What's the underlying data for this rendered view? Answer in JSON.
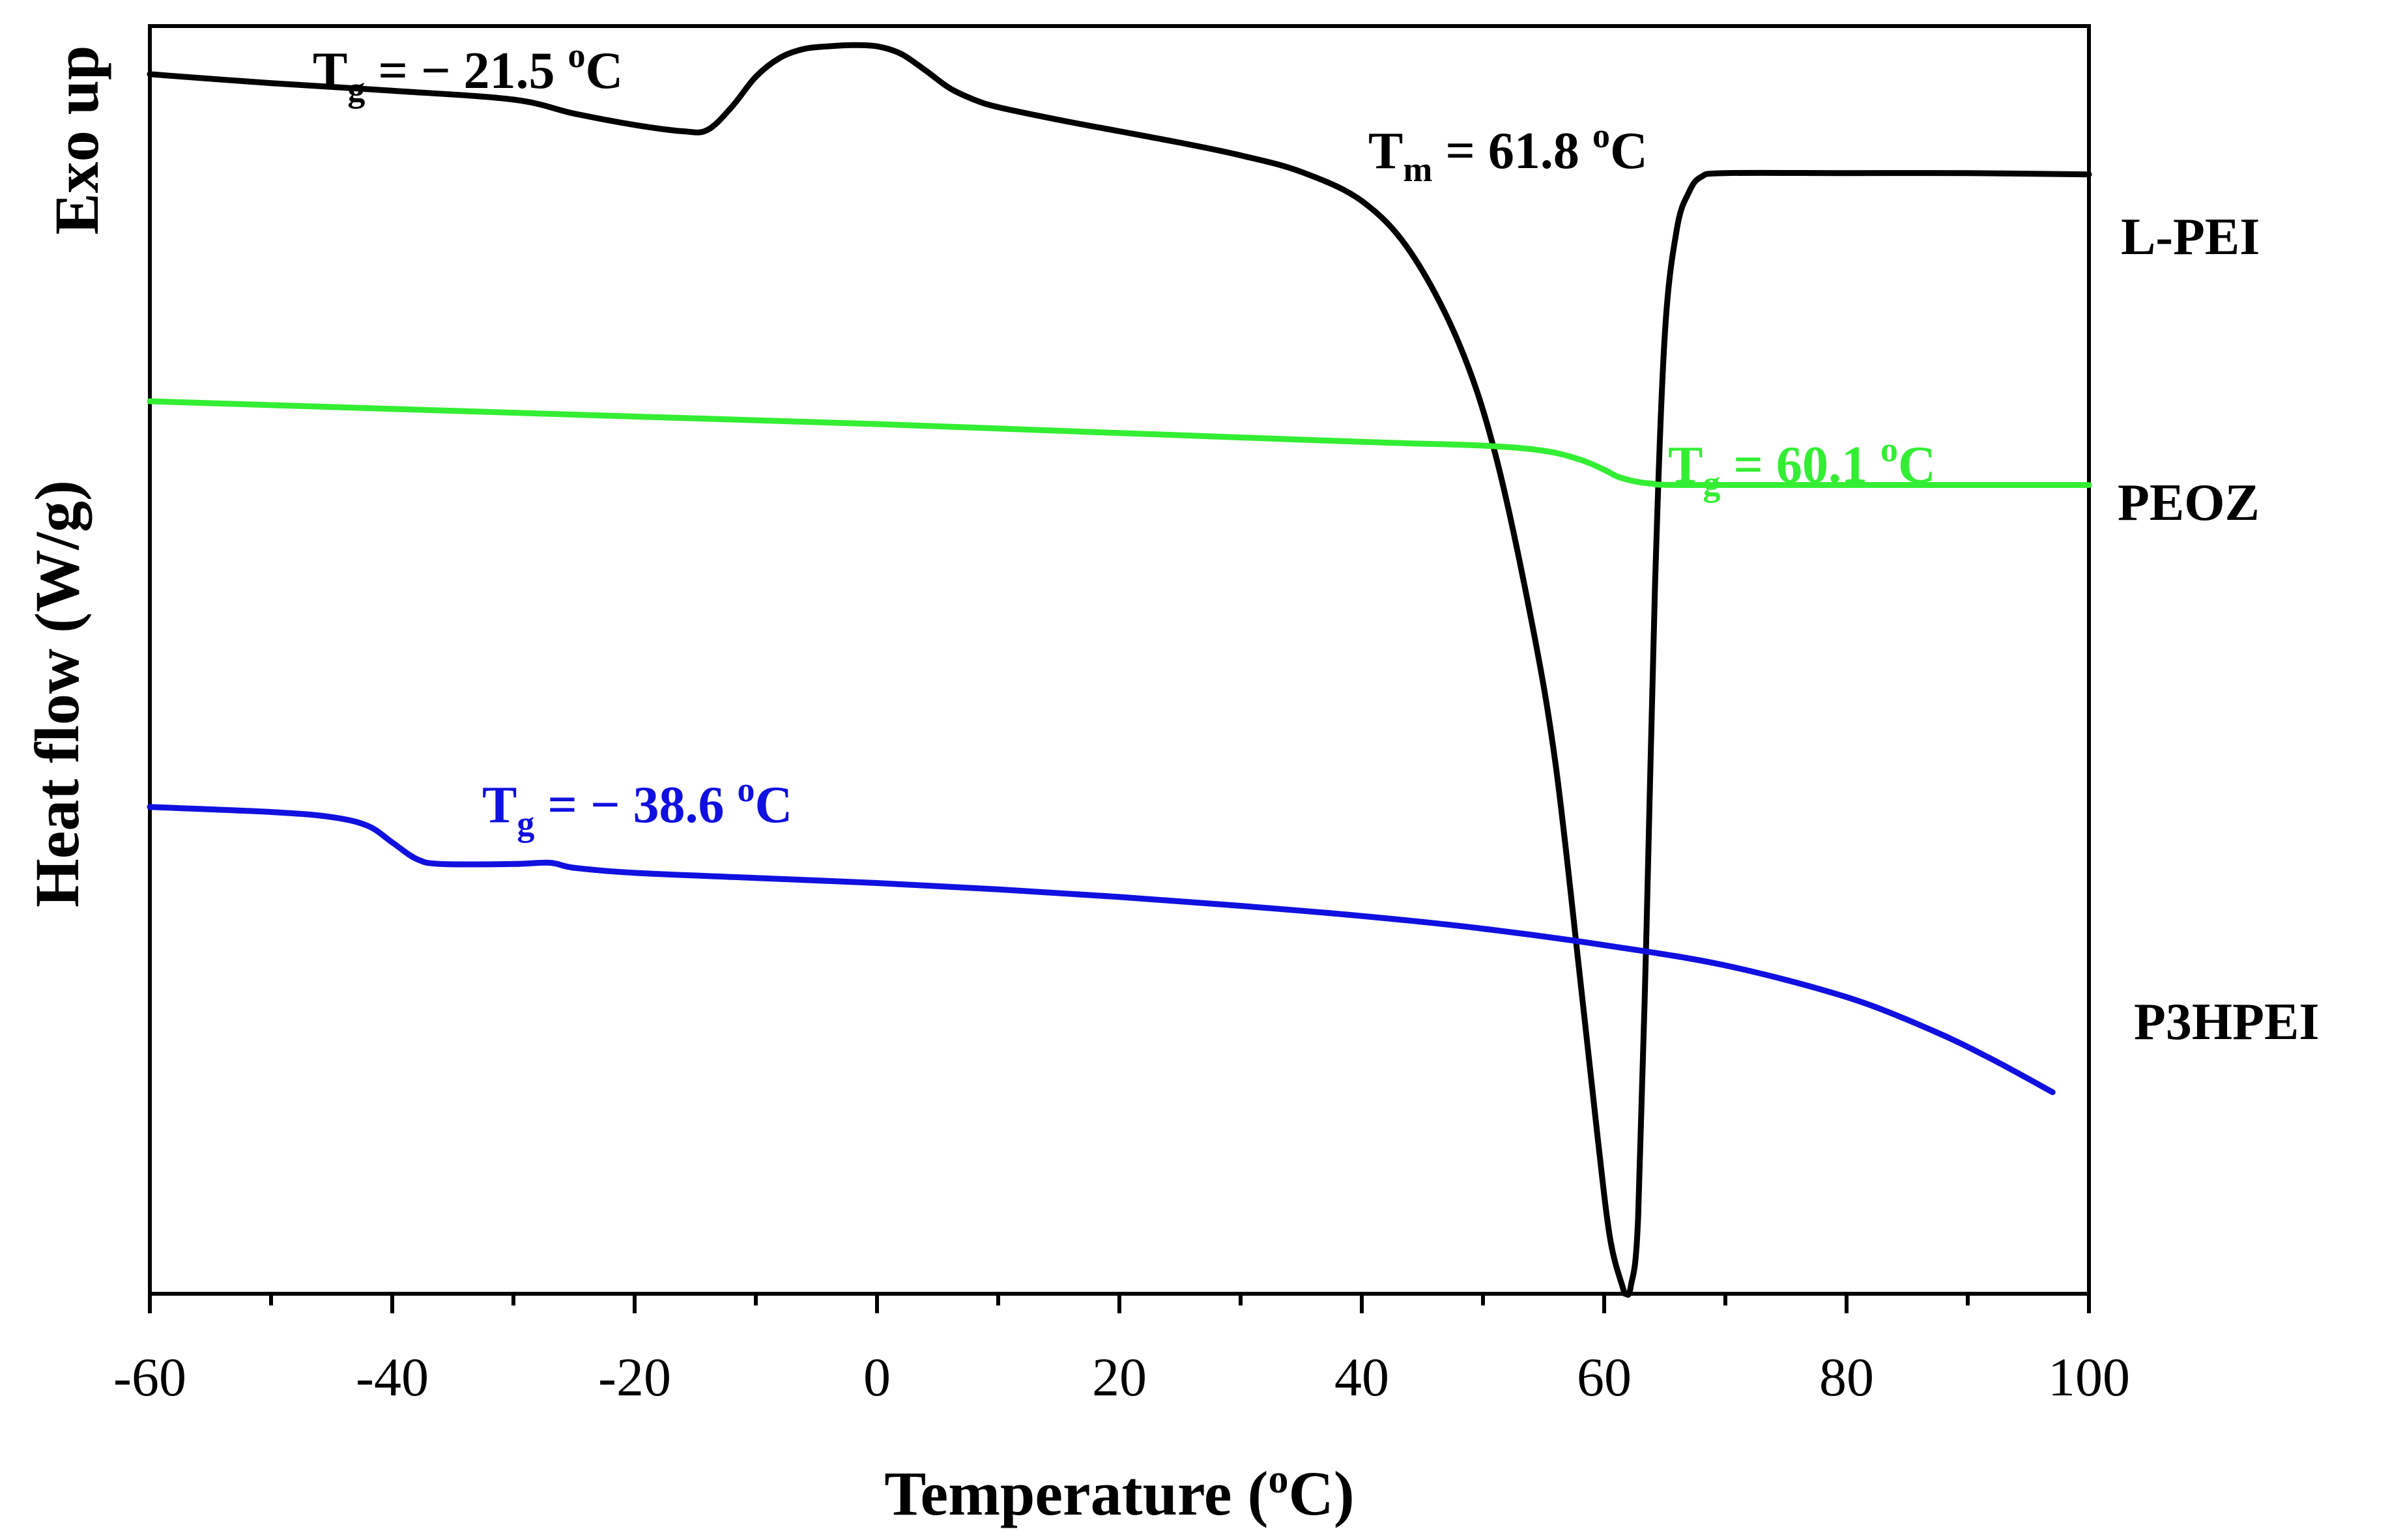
{
  "chart_data": {
    "type": "line",
    "title": "",
    "xlabel": "Temperature (oC)",
    "ylabel": "Heat flow (W/g)",
    "y_direction_label": "Exo up",
    "xlim": [
      -60,
      100
    ],
    "ylim": [
      0,
      100
    ],
    "x_ticks": [
      "-60",
      "-40",
      "-20",
      "0",
      "20",
      "40",
      "60",
      "80",
      "100"
    ],
    "y_ticks": [],
    "colors": {
      "L-PEI": "#000000",
      "PEOZ": "#33ee33",
      "P3HPEI": "#1010e0",
      "axis": "#000000"
    },
    "series": [
      {
        "name": "L-PEI",
        "points": [
          [
            -60,
            96.2
          ],
          [
            -50,
            95.5
          ],
          [
            -40,
            94.9
          ],
          [
            -30,
            94.2
          ],
          [
            -25,
            93.1
          ],
          [
            -20,
            92.2
          ],
          [
            -16,
            91.7
          ],
          [
            -14,
            91.8
          ],
          [
            -12,
            93.6
          ],
          [
            -10,
            96.0
          ],
          [
            -8,
            97.5
          ],
          [
            -6,
            98.2
          ],
          [
            -4,
            98.4
          ],
          [
            -2,
            98.5
          ],
          [
            0,
            98.4
          ],
          [
            2,
            97.8
          ],
          [
            4,
            96.5
          ],
          [
            6,
            95.1
          ],
          [
            8,
            94.2
          ],
          [
            10,
            93.6
          ],
          [
            15,
            92.6
          ],
          [
            20,
            91.7
          ],
          [
            25,
            90.8
          ],
          [
            30,
            89.8
          ],
          [
            35,
            88.5
          ],
          [
            40,
            86.2
          ],
          [
            44,
            82.2
          ],
          [
            48,
            75.0
          ],
          [
            51,
            66.3
          ],
          [
            54,
            53.1
          ],
          [
            56,
            41.7
          ],
          [
            58,
            25.0
          ],
          [
            59.5,
            12.0
          ],
          [
            60.5,
            4.3
          ],
          [
            61.5,
            0.6
          ],
          [
            61.8,
            0.0
          ],
          [
            62.2,
            0.6
          ],
          [
            62.8,
            6.0
          ],
          [
            63.5,
            29.0
          ],
          [
            64.2,
            56.0
          ],
          [
            65,
            75.6
          ],
          [
            66,
            84.0
          ],
          [
            67,
            86.9
          ],
          [
            68,
            88.1
          ],
          [
            70,
            88.4
          ],
          [
            80,
            88.4
          ],
          [
            90,
            88.4
          ],
          [
            100,
            88.3
          ]
        ]
      },
      {
        "name": "PEOZ",
        "points": [
          [
            -60,
            70.4
          ],
          [
            -40,
            69.8
          ],
          [
            -20,
            69.2
          ],
          [
            0,
            68.6
          ],
          [
            20,
            67.9
          ],
          [
            40,
            67.2
          ],
          [
            50,
            66.9
          ],
          [
            55,
            66.5
          ],
          [
            58,
            65.8
          ],
          [
            60,
            65.0
          ],
          [
            61,
            64.5
          ],
          [
            62,
            64.2
          ],
          [
            63,
            64.0
          ],
          [
            64,
            63.9
          ],
          [
            66,
            63.8
          ],
          [
            80,
            63.8
          ],
          [
            100,
            63.8
          ]
        ]
      },
      {
        "name": "P3HPEI",
        "points": [
          [
            -60,
            38.4
          ],
          [
            -50,
            38.0
          ],
          [
            -45,
            37.6
          ],
          [
            -42,
            36.9
          ],
          [
            -40,
            35.6
          ],
          [
            -38,
            34.3
          ],
          [
            -36,
            33.9
          ],
          [
            -30,
            33.9
          ],
          [
            -27,
            34.0
          ],
          [
            -25,
            33.6
          ],
          [
            -20,
            33.2
          ],
          [
            -10,
            32.8
          ],
          [
            0,
            32.4
          ],
          [
            10,
            31.9
          ],
          [
            20,
            31.3
          ],
          [
            30,
            30.6
          ],
          [
            40,
            29.8
          ],
          [
            50,
            28.8
          ],
          [
            60,
            27.5
          ],
          [
            70,
            25.9
          ],
          [
            80,
            23.4
          ],
          [
            87,
            20.8
          ],
          [
            92,
            18.5
          ],
          [
            97,
            15.9
          ]
        ]
      }
    ],
    "series_labels": [
      "L-PEI",
      "PEOZ",
      "P3HPEI"
    ],
    "annotations": [
      {
        "id": "lpei_tg",
        "main": "T",
        "sub": "g",
        "text": " = − 21.5 ",
        "sup": "o",
        "unit": "C"
      },
      {
        "id": "lpei_tm",
        "main": "T",
        "sub": "m",
        "text": " = 61.8 ",
        "sup": "o",
        "unit": "C"
      },
      {
        "id": "peoz_tg",
        "main": "T",
        "sub": "g",
        "text": " = 60.1 ",
        "sup": "o",
        "unit": "C"
      },
      {
        "id": "p3h_tg",
        "main": "T",
        "sub": "g",
        "text": " = − 38.6 ",
        "sup": "o",
        "unit": "C"
      }
    ]
  }
}
